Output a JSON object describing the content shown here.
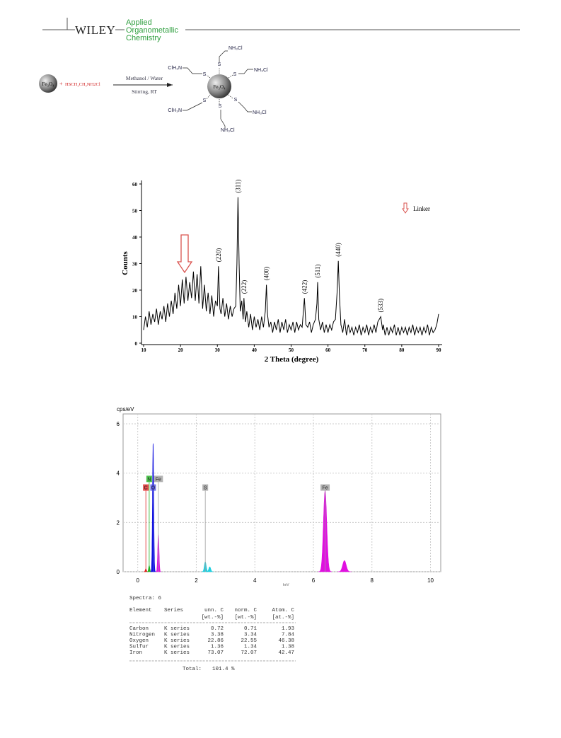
{
  "header": {
    "brand": "WILEY",
    "journal": [
      "Applied",
      "Organometallic",
      "Chemistry"
    ]
  },
  "scheme": {
    "reactant": "Fe₃O₄",
    "plus": "+",
    "reagent": "HSCH₂CH₂NH2Cl",
    "conditions": [
      "Methanol / Water",
      "Stirring, RT"
    ],
    "product_core": "Fe₃O₄",
    "sulfur": [
      "S",
      "S",
      "S",
      "S",
      "S",
      "S"
    ],
    "amines": [
      "NH₃Cl",
      "ClH₃N",
      "NH₃Cl",
      "ClH₃N",
      "NH₃Cl",
      "NH₃Cl"
    ]
  },
  "chart_data": [
    {
      "type": "line",
      "xlabel": "2 Theta (degree)",
      "ylabel": "Counts",
      "xlim": [
        10,
        90
      ],
      "ylim": [
        0,
        60
      ],
      "xticks": [
        10,
        20,
        30,
        40,
        50,
        60,
        70,
        80,
        90
      ],
      "yticks": [
        0,
        10,
        20,
        30,
        40,
        50,
        60
      ],
      "color": "#000000",
      "legend": {
        "label": "Linker",
        "position": "upper right",
        "color": "#d9534f"
      },
      "x": [
        10,
        10.5,
        11,
        11.5,
        12,
        12.5,
        13,
        13.5,
        14,
        14.5,
        15,
        15.5,
        16,
        16.5,
        17,
        17.5,
        18,
        18.5,
        19,
        19.5,
        20,
        20.5,
        21,
        21.5,
        22,
        22.5,
        23,
        23.5,
        24,
        24.5,
        25,
        25.5,
        26,
        26.5,
        27,
        27.5,
        28,
        28.5,
        29,
        29.5,
        30,
        30.3,
        30.7,
        31,
        31.5,
        32,
        32.5,
        33,
        33.5,
        34,
        34.5,
        35,
        35.3,
        35.6,
        35.9,
        36.2,
        36.6,
        37,
        37.2,
        37.6,
        38,
        38.5,
        39,
        39.5,
        40,
        40.5,
        41,
        41.5,
        42,
        42.5,
        43,
        43.3,
        43.6,
        44,
        44.5,
        45,
        45.5,
        46,
        46.5,
        47,
        47.5,
        48,
        48.5,
        49,
        49.5,
        50,
        50.5,
        51,
        51.5,
        52,
        52.5,
        53,
        53.6,
        54,
        54.5,
        55,
        55.5,
        56,
        56.6,
        57,
        57.2,
        57.5,
        58,
        58.5,
        59,
        59.5,
        60,
        60.5,
        61,
        61.5,
        62,
        62.5,
        62.8,
        63.1,
        63.5,
        64,
        64.5,
        65,
        65.5,
        66,
        66.5,
        67,
        67.5,
        68,
        68.5,
        69,
        69.5,
        70,
        70.5,
        71,
        71.5,
        72,
        72.5,
        73,
        73.5,
        74.3,
        74.8,
        75,
        75.5,
        76,
        76.5,
        77,
        77.5,
        78,
        78.5,
        79,
        79.5,
        80,
        80.5,
        81,
        81.5,
        82,
        82.5,
        83,
        83.5,
        84,
        84.5,
        85,
        85.5,
        86,
        86.5,
        87,
        87.5,
        88,
        88.5,
        89,
        89.5,
        90
      ],
      "values": [
        5,
        10,
        6,
        12,
        7,
        11,
        8,
        13,
        7,
        12,
        9,
        14,
        8,
        15,
        10,
        16,
        11,
        19,
        13,
        22,
        14,
        24,
        15,
        25,
        16,
        23,
        17,
        27,
        16,
        26,
        15,
        29,
        13,
        22,
        12,
        19,
        11,
        18,
        10,
        16,
        14,
        29,
        13,
        11,
        17,
        10,
        15,
        9,
        14,
        10,
        13,
        14,
        30,
        55,
        30,
        12,
        16,
        9,
        17,
        8,
        12,
        6,
        11,
        5,
        10,
        6,
        9,
        5,
        10,
        6,
        12,
        22,
        11,
        6,
        8,
        4,
        8,
        5,
        9,
        4,
        8,
        5,
        9,
        4,
        7,
        5,
        8,
        4,
        8,
        5,
        7,
        6,
        17,
        7,
        6,
        8,
        4,
        7,
        9,
        15,
        23,
        9,
        5,
        8,
        4,
        7,
        4,
        7,
        5,
        8,
        9,
        20,
        31,
        18,
        7,
        4,
        9,
        3,
        7,
        4,
        6,
        3,
        6,
        4,
        7,
        3,
        6,
        4,
        7,
        3,
        6,
        4,
        7,
        4,
        8,
        10,
        5,
        7,
        3,
        6,
        3,
        6,
        4,
        7,
        3,
        6,
        3,
        6,
        4,
        6,
        3,
        6,
        4,
        7,
        3,
        6,
        4,
        6,
        3,
        6,
        4,
        7,
        3,
        6,
        4,
        5,
        7,
        11
      ],
      "annotations": [
        {
          "text": "(220)",
          "x": 30.3
        },
        {
          "text": "(311)",
          "x": 35.6
        },
        {
          "text": "(222)",
          "x": 37.2
        },
        {
          "text": "(400)",
          "x": 43.3
        },
        {
          "text": "(422)",
          "x": 53.6
        },
        {
          "text": "(511)",
          "x": 57.2
        },
        {
          "text": "(440)",
          "x": 62.8
        },
        {
          "text": "(533)",
          "x": 74.3
        }
      ]
    },
    {
      "type": "spectrum",
      "xlabel": "keV",
      "ylabel": "cps/eV",
      "xlim": [
        -0.5,
        10.35
      ],
      "ylim": [
        0,
        6.4
      ],
      "xticks": [
        0,
        2,
        4,
        6,
        8,
        10
      ],
      "yticks": [
        0,
        2,
        4,
        6
      ],
      "grid": true,
      "peaks": [
        {
          "energy": 0.277,
          "height": 0.12,
          "color": "#e02020"
        },
        {
          "energy": 0.392,
          "height": 0.25,
          "color": "#20b020"
        },
        {
          "energy": 0.525,
          "height": 5.2,
          "color": "#1010e0"
        },
        {
          "energy": 0.705,
          "height": 1.5,
          "color": "#e010e0"
        },
        {
          "energy": 2.307,
          "height": 0.4,
          "color": "#20d0e0"
        },
        {
          "energy": 2.46,
          "height": 0.2,
          "color": "#20d0e0"
        },
        {
          "energy": 6.4,
          "height": 3.3,
          "color": "#e010e0"
        },
        {
          "energy": 7.06,
          "height": 0.45,
          "color": "#e010e0"
        }
      ],
      "markers": [
        {
          "label": "C",
          "x": 0.277,
          "color": "#e02020"
        },
        {
          "label": "N",
          "x": 0.392,
          "color": "#20b020"
        },
        {
          "label": "O",
          "x": 0.525,
          "color": "#5050e0"
        },
        {
          "label": "Fe",
          "x": 0.705,
          "color": "#a0a0a0"
        },
        {
          "label": "S",
          "x": 2.307,
          "color": "#a0a0a0"
        },
        {
          "label": "Fe",
          "x": 6.4,
          "color": "#a0a0a0"
        }
      ]
    }
  ],
  "table": {
    "title": "Spectra: 6",
    "columns": [
      "Element",
      "Series",
      "unn. C",
      "norm. C",
      "Atom. C"
    ],
    "units": [
      "[wt.-%]",
      "[wt.-%]",
      "[at.-%]"
    ],
    "rows": [
      [
        "Carbon",
        "K series",
        0.72,
        0.71,
        1.93
      ],
      [
        "Nitrogen",
        "K series",
        3.38,
        3.34,
        7.84
      ],
      [
        "Oxygen",
        "K series",
        22.86,
        22.55,
        46.38
      ],
      [
        "Sulfur",
        "K series",
        1.36,
        1.34,
        1.38
      ],
      [
        "Iron",
        "K series",
        73.07,
        72.07,
        42.47
      ]
    ],
    "total_label": "Total:",
    "total": "101.4 %"
  }
}
